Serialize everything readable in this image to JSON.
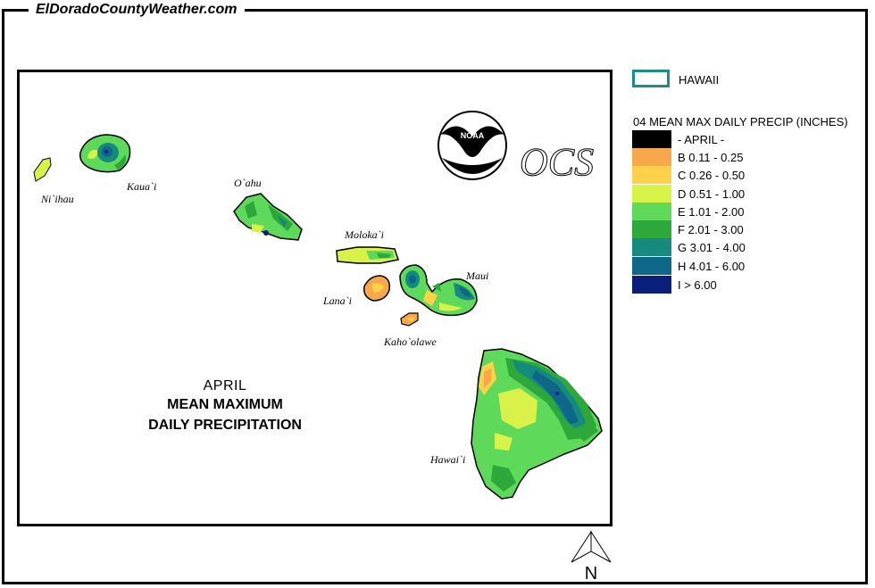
{
  "site_title": "ElDoradoCountyWeather.com",
  "map": {
    "title_month": "APRIL",
    "title_line1": "MEAN MAXIMUM",
    "title_line2": "DAILY PRECIPITATION",
    "noaa_label": "NOAA",
    "ocs_label": "OCS",
    "islands": {
      "niihau": "Ni`ihau",
      "kauai": "Kaua`i",
      "oahu": "O`ahu",
      "molokai": "Moloka`i",
      "lanai": "Lana`i",
      "maui": "Maui",
      "kahoolawe": "Kaho`olawe",
      "hawaii": "Hawai`i"
    }
  },
  "legend": {
    "state_label": "HAWAII",
    "state_outline_color": "#1a8e8e",
    "heading": "04 MEAN MAX DAILY PRECIP (INCHES)",
    "items": [
      {
        "label": "- APRIL -",
        "color": "#000000"
      },
      {
        "label": "B 0.11 - 0.25",
        "color": "#f7a84a"
      },
      {
        "label": "C 0.26 - 0.50",
        "color": "#fdd24a"
      },
      {
        "label": "D 0.51 - 1.00",
        "color": "#d8f24a"
      },
      {
        "label": "E 1.01 - 2.00",
        "color": "#5fd95a"
      },
      {
        "label": "F 2.01 - 3.00",
        "color": "#2ea83a"
      },
      {
        "label": "G 3.01 - 4.00",
        "color": "#178a80"
      },
      {
        "label": "H 4.01 - 6.00",
        "color": "#0e6688"
      },
      {
        "label": "I > 6.00",
        "color": "#0a1f7a"
      }
    ]
  },
  "north_label": "N"
}
